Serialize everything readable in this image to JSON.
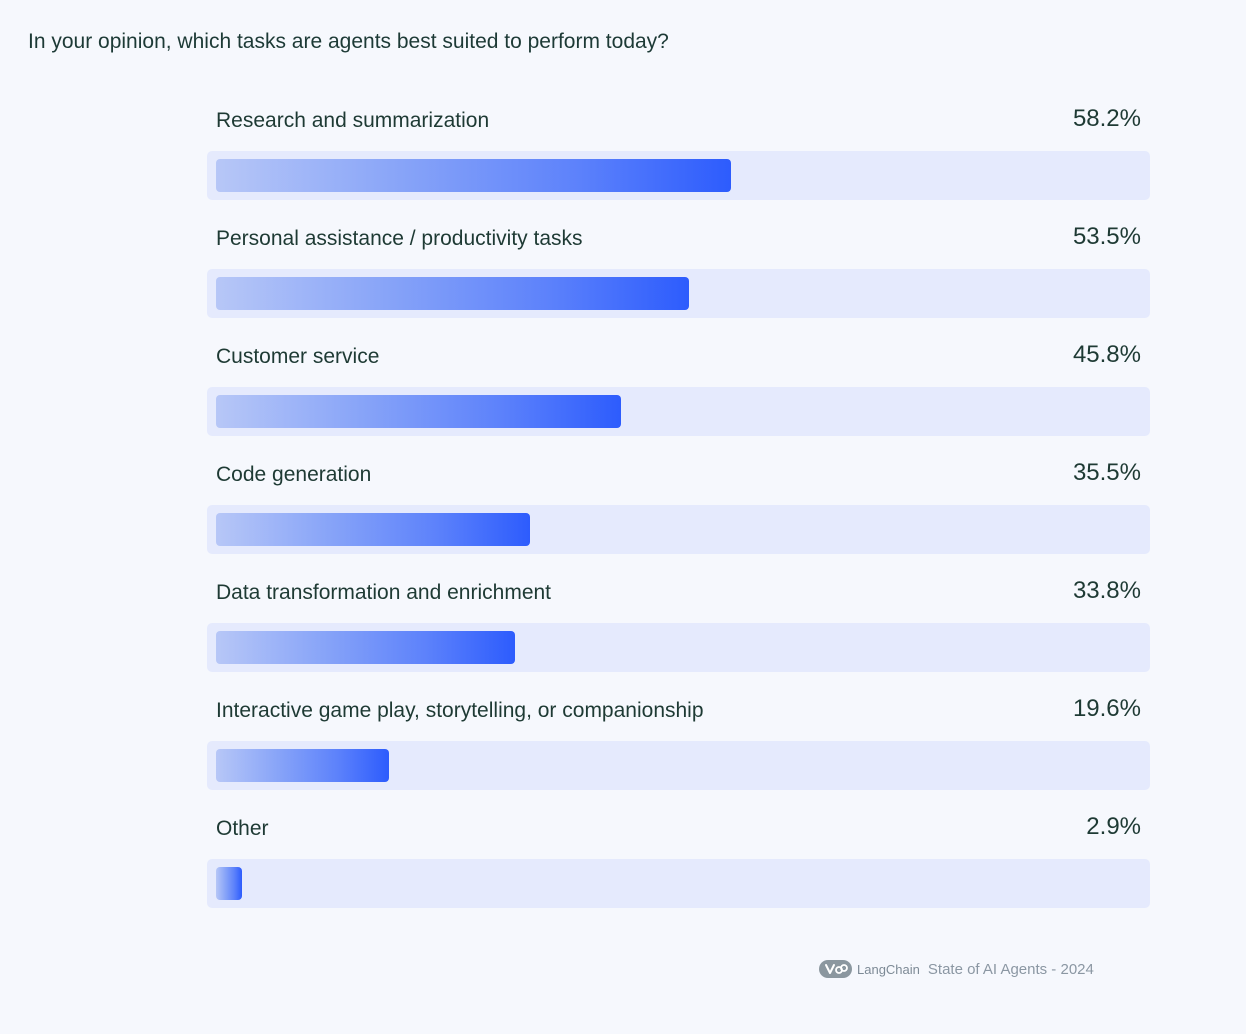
{
  "chart_data": {
    "type": "bar",
    "orientation": "horizontal",
    "title": "In your opinion, which tasks are agents best suited to perform today?",
    "categories": [
      "Research and summarization",
      "Personal assistance / productivity tasks",
      "Customer service",
      "Code generation",
      "Data transformation and enrichment",
      "Interactive game play, storytelling, or companionship",
      "Other"
    ],
    "values": [
      58.2,
      53.5,
      45.8,
      35.5,
      33.8,
      19.6,
      2.9
    ],
    "value_labels": [
      "58.2%",
      "53.5%",
      "45.8%",
      "35.5%",
      "33.8%",
      "19.6%",
      "2.9%"
    ],
    "xlim": [
      0,
      100
    ],
    "grid": false,
    "legend": "none",
    "colors": {
      "bar_start": "#b7c7f7",
      "bar_end": "#2d5cfd",
      "track": "#e5eafd",
      "background": "#f6f8fd",
      "text": "#1e3a34"
    }
  },
  "footer": {
    "brand": "LangChain",
    "source": "State of AI Agents - 2024",
    "icon": "langchain-logo-icon"
  }
}
